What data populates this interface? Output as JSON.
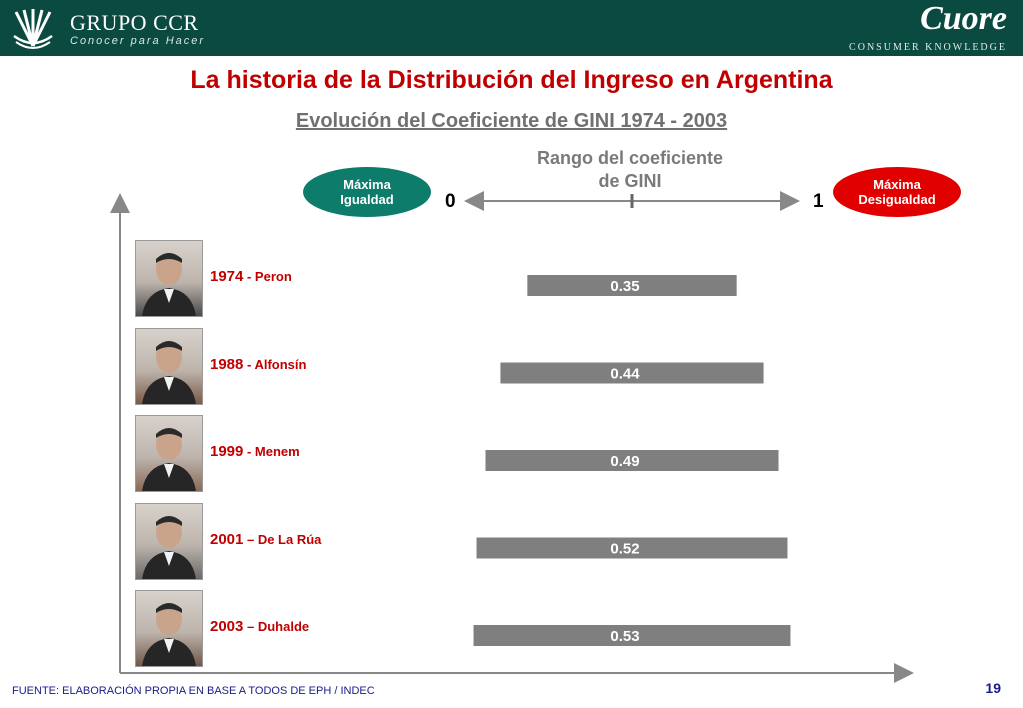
{
  "header": {
    "brand": "GRUPO CCR",
    "tagline": "Conocer para Hacer",
    "partner_logo": "Cuore",
    "partner_tagline": "CONSUMER KNOWLEDGE"
  },
  "title": "La historia de la Distribución del Ingreso en Argentina",
  "subtitle": "Evolución del Coeficiente de GINI 1974 - 2003",
  "scale": {
    "label_line1": "Rango del coeficiente",
    "label_line2": "de GINI",
    "min_label": "0",
    "max_label": "1",
    "left_oval_line1": "Máxima",
    "left_oval_line2": "Igualdad",
    "right_oval_line1": "Máxima",
    "right_oval_line2": "Desigualdad",
    "left_color": "#0e7c6b",
    "right_color": "#e00000"
  },
  "chart_data": {
    "type": "bar",
    "orientation": "horizontal",
    "alignment": "centered",
    "xlim": [
      0,
      1
    ],
    "bar_color": "#7f7f7f",
    "categories": [
      "1974",
      "1988",
      "1999",
      "2001",
      "2003"
    ],
    "separators": [
      "-",
      "-",
      "-",
      "–",
      "–"
    ],
    "names": [
      "Peron",
      "Alfonsín",
      "Menem",
      "De La Rúa",
      "Duhalde"
    ],
    "values": [
      0.35,
      0.44,
      0.49,
      0.52,
      0.53
    ],
    "value_labels": [
      "0.35",
      "0.44",
      "0.49",
      "0.52",
      "0.53"
    ]
  },
  "footer": {
    "source": "FUENTE: ELABORACIÓN PROPIA EN BASE A TODOS DE EPH / INDEC",
    "page_number": "19"
  }
}
